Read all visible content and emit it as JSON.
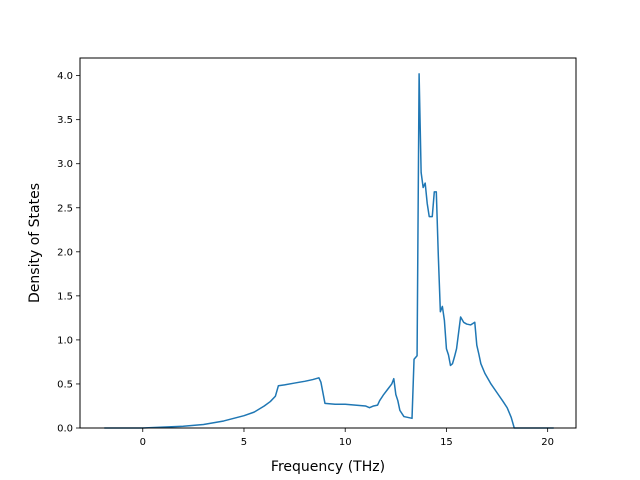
{
  "chart_data": {
    "type": "line",
    "title": "",
    "xlabel": "Frequency (THz)",
    "ylabel": "Density of States",
    "xlim": [
      -3.1,
      21.4
    ],
    "ylim": [
      0,
      4.2
    ],
    "grid": false,
    "xticks": [
      0,
      5,
      10,
      15,
      20
    ],
    "xtick_labels": [
      "0",
      "5",
      "10",
      "15",
      "20"
    ],
    "yticks": [
      0.0,
      0.5,
      1.0,
      1.5,
      2.0,
      2.5,
      3.0,
      3.5,
      4.0
    ],
    "ytick_labels": [
      "0.0",
      "0.5",
      "1.0",
      "1.5",
      "2.0",
      "2.5",
      "3.0",
      "3.5",
      "4.0"
    ],
    "series": [
      {
        "color": "#1f77b4",
        "x": [
          -1.9,
          -1.0,
          0.0,
          1.0,
          2.0,
          3.0,
          4.0,
          5.0,
          5.5,
          6.0,
          6.3,
          6.55,
          6.7,
          7.0,
          7.5,
          8.0,
          8.4,
          8.7,
          8.8,
          9.0,
          9.5,
          10.0,
          10.5,
          11.0,
          11.2,
          11.4,
          11.6,
          11.7,
          11.9,
          12.1,
          12.3,
          12.4,
          12.5,
          12.6,
          12.7,
          12.9,
          13.1,
          13.3,
          13.4,
          13.55,
          13.65,
          13.75,
          13.85,
          13.95,
          14.05,
          14.15,
          14.3,
          14.4,
          14.5,
          14.6,
          14.7,
          14.8,
          14.9,
          15.0,
          15.1,
          15.2,
          15.3,
          15.4,
          15.5,
          15.7,
          15.85,
          16.0,
          16.2,
          16.4,
          16.5,
          16.6,
          16.7,
          16.9,
          17.2,
          17.5,
          17.8,
          18.0,
          18.2,
          18.35,
          18.5,
          18.7,
          19.0,
          19.5,
          20.3
        ],
        "y": [
          0.0,
          0.0,
          0.0,
          0.01,
          0.02,
          0.04,
          0.08,
          0.14,
          0.18,
          0.25,
          0.3,
          0.36,
          0.48,
          0.49,
          0.51,
          0.53,
          0.55,
          0.57,
          0.52,
          0.28,
          0.27,
          0.27,
          0.26,
          0.25,
          0.23,
          0.25,
          0.26,
          0.31,
          0.38,
          0.44,
          0.5,
          0.56,
          0.38,
          0.31,
          0.2,
          0.13,
          0.12,
          0.11,
          0.78,
          0.82,
          4.02,
          2.9,
          2.73,
          2.78,
          2.55,
          2.4,
          2.4,
          2.68,
          2.68,
          1.95,
          1.32,
          1.38,
          1.22,
          0.9,
          0.83,
          0.71,
          0.73,
          0.81,
          0.9,
          1.26,
          1.2,
          1.18,
          1.17,
          1.2,
          0.94,
          0.84,
          0.73,
          0.62,
          0.5,
          0.4,
          0.3,
          0.23,
          0.12,
          0.0,
          0.0,
          0.0,
          0.0,
          0.0,
          0.0
        ]
      }
    ]
  }
}
